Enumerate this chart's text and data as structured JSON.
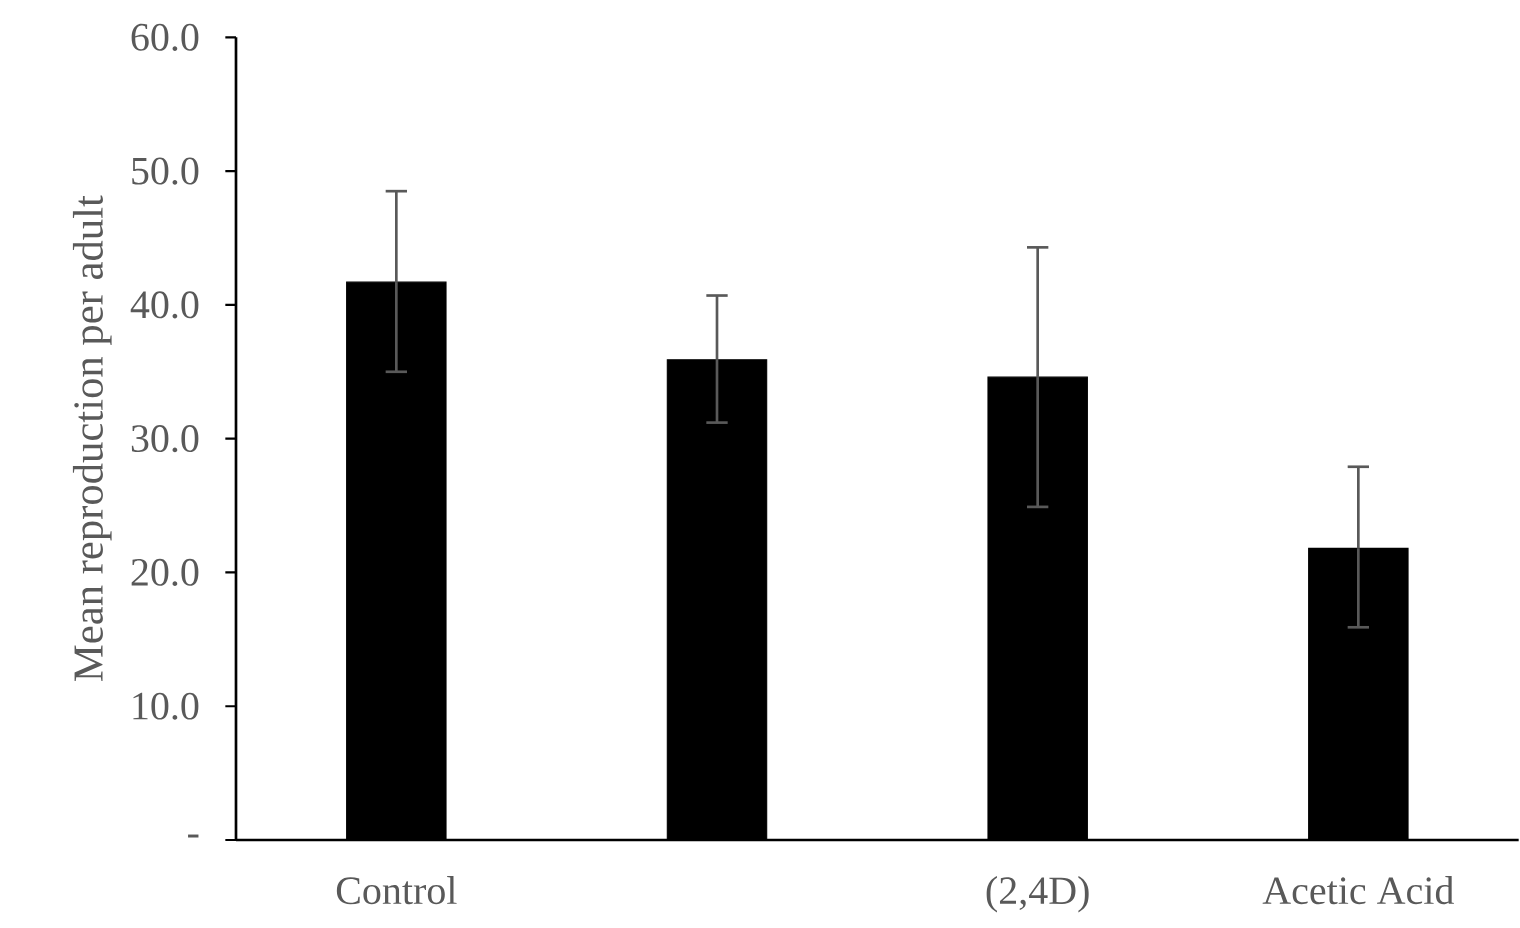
{
  "chart_data": {
    "type": "bar",
    "ylabel": "Mean reproduction per adult",
    "categories": [
      "Control",
      null,
      "(2,4D)",
      "Acetic Acid"
    ],
    "values": [
      41.7,
      35.9,
      34.6,
      21.8
    ],
    "errors": [
      [
        35.0,
        48.5
      ],
      [
        31.2,
        40.7
      ],
      [
        24.9,
        44.3
      ],
      [
        15.9,
        27.9
      ]
    ],
    "color": "#000000",
    "ylim": [
      0,
      60
    ],
    "yticks": [
      {
        "value": 0,
        "label": "-"
      },
      {
        "value": 10,
        "label": "10.0"
      },
      {
        "value": 20,
        "label": "20.0"
      },
      {
        "value": 30,
        "label": "30.0"
      },
      {
        "value": 40,
        "label": "40.0"
      },
      {
        "value": 50,
        "label": "50.0"
      },
      {
        "value": 60,
        "label": "60.0"
      }
    ],
    "grid": false
  }
}
